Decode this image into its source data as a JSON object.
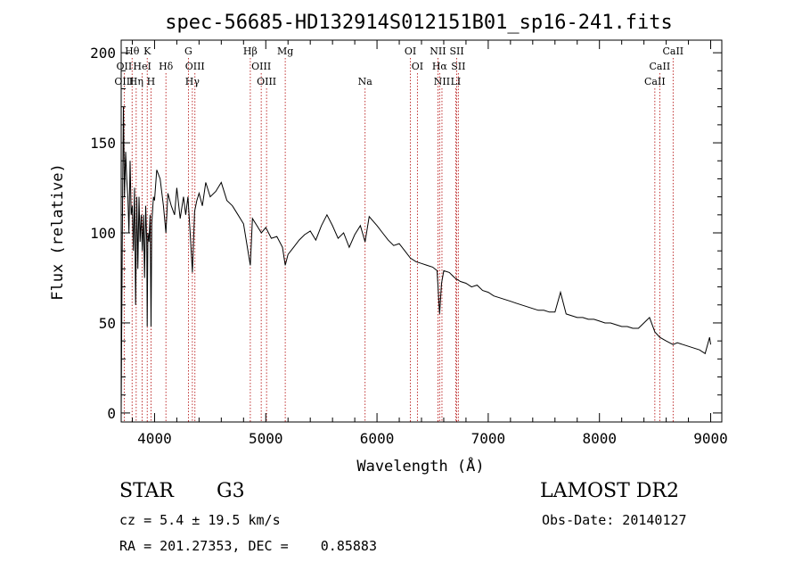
{
  "chart_data": {
    "type": "line",
    "title": "spec-56685-HD132914S012151B01_sp16-241.fits",
    "xlabel": "Wavelength (Å)",
    "ylabel": "Flux (relative)",
    "xlim": [
      3700,
      9100
    ],
    "ylim": [
      -5,
      207
    ],
    "x_ticks": [
      "4000",
      "5000",
      "6000",
      "7000",
      "8000",
      "9000"
    ],
    "y_ticks": [
      "0",
      "50",
      "100",
      "150",
      "200"
    ],
    "grid": false,
    "series": [
      {
        "x": [
          3700,
          3710,
          3720,
          3730,
          3740,
          3750,
          3760,
          3770,
          3780,
          3790,
          3800,
          3810,
          3820,
          3830,
          3840,
          3850,
          3860,
          3870,
          3880,
          3890,
          3900,
          3910,
          3920,
          3930,
          3934,
          3940,
          3950,
          3960,
          3968,
          3975,
          3990,
          4000,
          4020,
          4050,
          4080,
          4102,
          4120,
          4150,
          4180,
          4200,
          4230,
          4260,
          4280,
          4300,
          4320,
          4340,
          4360,
          4380,
          4400,
          4430,
          4460,
          4500,
          4550,
          4600,
          4650,
          4700,
          4750,
          4800,
          4861,
          4880,
          4920,
          4960,
          5000,
          5050,
          5100,
          5150,
          5175,
          5200,
          5250,
          5300,
          5350,
          5400,
          5450,
          5500,
          5550,
          5600,
          5650,
          5700,
          5750,
          5800,
          5850,
          5893,
          5930,
          6000,
          6050,
          6100,
          6150,
          6200,
          6250,
          6300,
          6350,
          6400,
          6450,
          6500,
          6540,
          6563,
          6580,
          6600,
          6650,
          6700,
          6750,
          6800,
          6850,
          6900,
          6950,
          7000,
          7050,
          7100,
          7150,
          7200,
          7250,
          7300,
          7350,
          7400,
          7450,
          7500,
          7550,
          7600,
          7650,
          7700,
          7750,
          7800,
          7850,
          7900,
          7950,
          8000,
          8050,
          8100,
          8150,
          8200,
          8250,
          8300,
          8350,
          8400,
          8450,
          8498,
          8542,
          8600,
          8662,
          8700,
          8750,
          8800,
          8850,
          8900,
          8950,
          8990,
          9000
        ],
        "y": [
          0,
          95,
          170,
          120,
          145,
          130,
          120,
          100,
          140,
          110,
          115,
          90,
          125,
          60,
          120,
          80,
          120,
          95,
          110,
          90,
          110,
          75,
          115,
          95,
          48,
          100,
          95,
          110,
          48,
          105,
          120,
          118,
          135,
          130,
          115,
          100,
          122,
          115,
          110,
          125,
          108,
          120,
          110,
          120,
          100,
          78,
          112,
          118,
          122,
          115,
          128,
          120,
          123,
          128,
          118,
          115,
          110,
          105,
          82,
          108,
          104,
          100,
          103,
          97,
          98,
          92,
          82,
          88,
          92,
          96,
          99,
          101,
          96,
          104,
          110,
          104,
          97,
          100,
          92,
          99,
          104,
          95,
          109,
          104,
          100,
          96,
          93,
          94,
          90,
          86,
          84,
          83,
          82,
          81,
          79,
          55,
          72,
          79,
          78,
          75,
          73,
          72,
          70,
          71,
          68,
          67,
          65,
          64,
          63,
          62,
          61,
          60,
          59,
          58,
          57,
          57,
          56,
          56,
          67,
          55,
          54,
          53,
          53,
          52,
          52,
          51,
          50,
          50,
          49,
          48,
          48,
          47,
          47,
          50,
          53,
          45,
          42,
          40,
          38,
          39,
          38,
          37,
          36,
          35,
          33,
          42,
          38
        ]
      }
    ],
    "line_markers": [
      {
        "label": "Hθ",
        "x": 3798,
        "row": 1
      },
      {
        "label": "K",
        "x": 3934,
        "row": 1
      },
      {
        "label": "G",
        "x": 4304,
        "row": 1
      },
      {
        "label": "Hβ",
        "x": 4861,
        "row": 1
      },
      {
        "label": "Mg",
        "x": 5175,
        "row": 1
      },
      {
        "label": "OI",
        "x": 6300,
        "row": 1
      },
      {
        "label": "NII",
        "x": 6548,
        "row": 1
      },
      {
        "label": "SII",
        "x": 6717,
        "row": 1
      },
      {
        "label": "CaII",
        "x": 8662,
        "row": 1
      },
      {
        "label": "OII",
        "x": 3727,
        "row": 2
      },
      {
        "label": "HeI",
        "x": 3889,
        "row": 2
      },
      {
        "label": "Hδ",
        "x": 4102,
        "row": 2
      },
      {
        "label": "OIII",
        "x": 4363,
        "row": 2
      },
      {
        "label": "OIII",
        "x": 4959,
        "row": 2
      },
      {
        "label": "OI",
        "x": 6363,
        "row": 2
      },
      {
        "label": "Hα",
        "x": 6563,
        "row": 2
      },
      {
        "label": "SII",
        "x": 6731,
        "row": 2
      },
      {
        "label": "CaII",
        "x": 8542,
        "row": 2
      },
      {
        "label": "OIII",
        "x": 3727,
        "row": 3
      },
      {
        "label": "Hη",
        "x": 3835,
        "row": 3
      },
      {
        "label": "H",
        "x": 3968,
        "row": 3
      },
      {
        "label": "Hγ",
        "x": 4340,
        "row": 3
      },
      {
        "label": "OIII",
        "x": 5007,
        "row": 3
      },
      {
        "label": "Na",
        "x": 5893,
        "row": 3
      },
      {
        "label": "NII",
        "x": 6584,
        "row": 3
      },
      {
        "label": "LI",
        "x": 6708,
        "row": 3
      },
      {
        "label": "CaII",
        "x": 8498,
        "row": 3
      }
    ]
  },
  "info": {
    "class_label": "STAR",
    "subclass": "G3",
    "survey": "LAMOST DR2",
    "redshift": "cz = 5.4 ± 19.5 km/s",
    "obs_date": "Obs-Date: 20140127",
    "coords": "RA = 201.27353, DEC =    0.85883"
  }
}
